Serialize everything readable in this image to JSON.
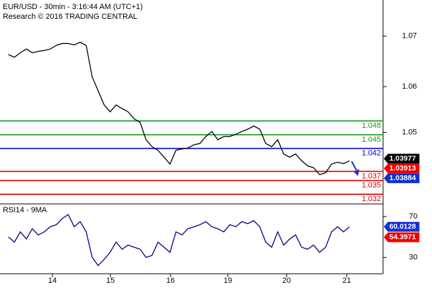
{
  "chart_data": {
    "type": "line",
    "title": "EUR/USD - 30min - 3:16:44 AM (UTC+1)",
    "subtitle": "Research © 2016 TRADING CENTRAL",
    "xlabels": [
      "14",
      "15",
      "16",
      "19",
      "20",
      "21"
    ],
    "ylim": [
      1.0299,
      1.0744
    ],
    "yticks": [
      {
        "value": 1.0665,
        "label": "1.07"
      },
      {
        "value": 1.0555,
        "label": "1.06"
      },
      {
        "value": 1.0455,
        "label": "1.05"
      }
    ],
    "series": [
      {
        "name": "EUR/USD",
        "color": "#000000",
        "values": [
          1.0625,
          1.0619,
          1.0629,
          1.0637,
          1.0629,
          1.0632,
          1.0634,
          1.0637,
          1.0645,
          1.0649,
          1.0649,
          1.0646,
          1.0652,
          1.0645,
          1.0576,
          1.0546,
          1.0515,
          1.05,
          1.0515,
          1.0507,
          1.05,
          1.0485,
          1.0477,
          1.0439,
          1.0424,
          1.0416,
          1.0401,
          1.0386,
          1.0416,
          1.0419,
          1.0421,
          1.0428,
          1.0431,
          1.0446,
          1.0457,
          1.0439,
          1.0446,
          1.0446,
          1.0451,
          1.0457,
          1.0462,
          1.0469,
          1.0462,
          1.0431,
          1.0424,
          1.0439,
          1.0408,
          1.0401,
          1.0408,
          1.0393,
          1.0382,
          1.0378,
          1.0363,
          1.0367,
          1.0386,
          1.039,
          1.0387,
          1.0393
        ]
      }
    ],
    "levels": [
      {
        "value": 1.048,
        "color": "#1a9a1a"
      },
      {
        "value": 1.045,
        "color": "#1a9a1a"
      },
      {
        "value": 1.042,
        "color": "#0000cc"
      },
      {
        "value": 1.037,
        "color": "#dd0000"
      },
      {
        "value": 1.035,
        "color": "#dd0000"
      },
      {
        "value": 1.032,
        "color": "#dd0000"
      }
    ],
    "price_tags": [
      {
        "value": 1.03977,
        "color": "#000000"
      },
      {
        "value": 1.03913,
        "color": "#ee0000"
      },
      {
        "value": 1.03884,
        "color": "#1030d0"
      }
    ],
    "rsi": {
      "title": "RSI14 - 9MA",
      "ylim": [
        14,
        81
      ],
      "yticks": [
        70,
        30
      ],
      "color": "#000080",
      "values": [
        50,
        45,
        55,
        48,
        58,
        52,
        55,
        60,
        62,
        68,
        72,
        60,
        65,
        55,
        30,
        22,
        28,
        35,
        45,
        38,
        42,
        40,
        38,
        30,
        32,
        45,
        40,
        35,
        55,
        52,
        58,
        60,
        62,
        65,
        60,
        58,
        55,
        62,
        60,
        65,
        63,
        66,
        60,
        45,
        40,
        55,
        42,
        48,
        52,
        40,
        38,
        42,
        35,
        40,
        55,
        60,
        55,
        60
      ],
      "tags": [
        {
          "value": 60.0128,
          "color": "#1030d0"
        },
        {
          "value": 54.3971,
          "color": "#ee0000"
        }
      ]
    }
  }
}
